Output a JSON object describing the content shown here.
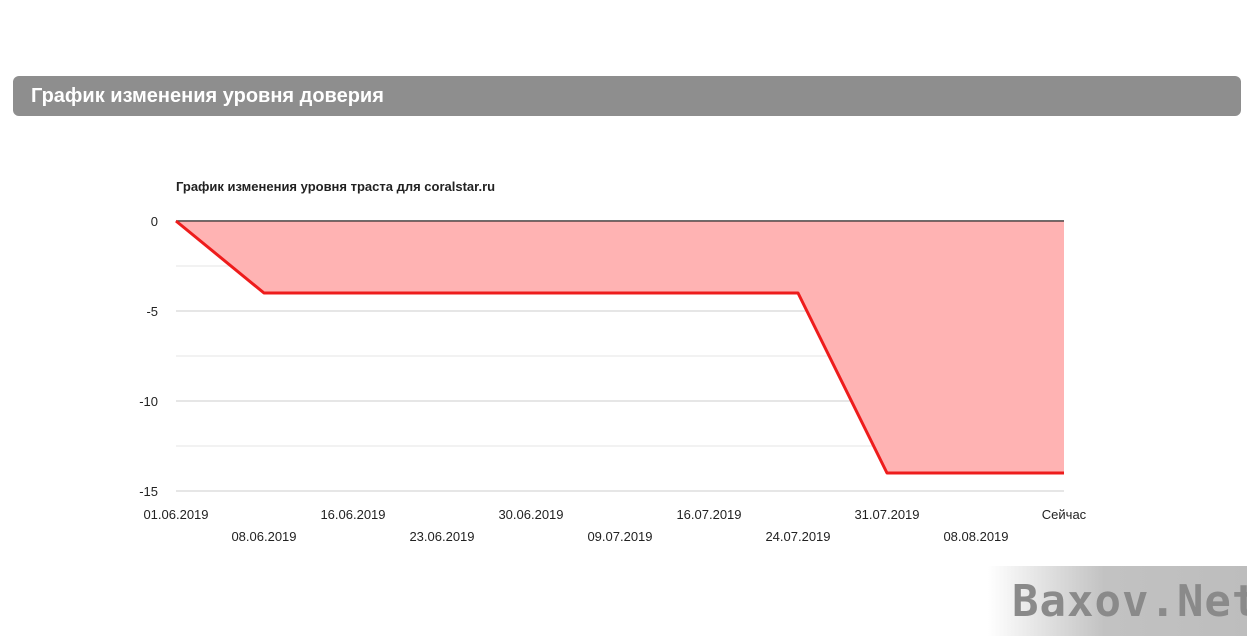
{
  "section": {
    "title": "График изменения уровня доверия"
  },
  "chart_data": {
    "type": "area",
    "title": "График изменения уровня траста для coralstar.ru",
    "xlabel": "",
    "ylabel": "",
    "ylim": [
      -15,
      0
    ],
    "yticks": [
      0,
      -5,
      -10,
      -15
    ],
    "ytick_labels": [
      "0",
      "-5",
      "-10",
      "-15"
    ],
    "categories": [
      "01.06.2019",
      "08.06.2019",
      "16.06.2019",
      "23.06.2019",
      "30.06.2019",
      "09.07.2019",
      "16.07.2019",
      "24.07.2019",
      "31.07.2019",
      "08.08.2019",
      "Сейчас"
    ],
    "values": [
      0,
      -4,
      -4,
      -4,
      -4,
      -4,
      -4,
      -4,
      -14,
      -14,
      -14
    ],
    "series_color": "#ee1c1c",
    "fill_color": "#ffb3b3",
    "grid": true
  },
  "watermark": {
    "text": "Baxov.Net"
  }
}
